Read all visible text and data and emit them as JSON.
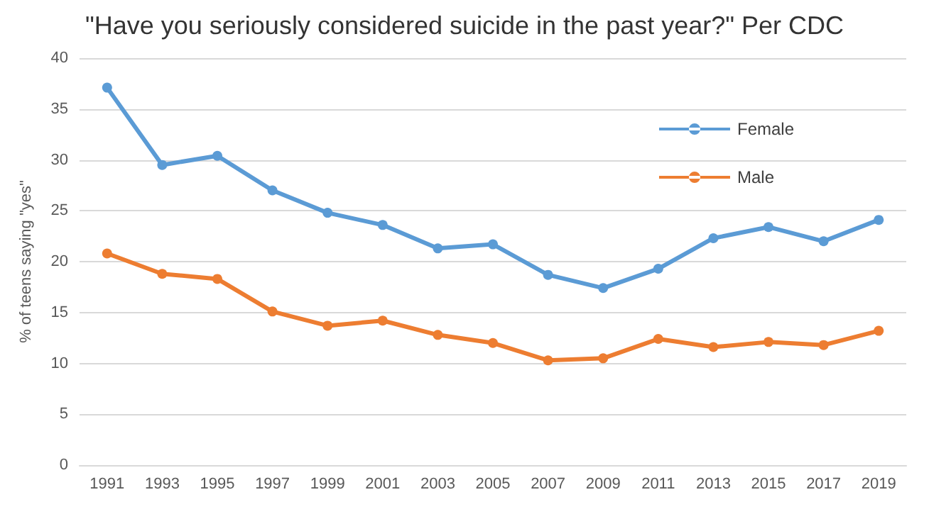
{
  "chart_data": {
    "type": "line",
    "title": "\"Have you seriously considered suicide in the past year?\" Per CDC",
    "ylabel": "% of teens saying \"yes\"",
    "categories": [
      "1991",
      "1993",
      "1995",
      "1997",
      "1999",
      "2001",
      "2003",
      "2005",
      "2007",
      "2009",
      "2011",
      "2013",
      "2015",
      "2017",
      "2019"
    ],
    "series": [
      {
        "name": "Female",
        "color": "#5b9bd5",
        "values": [
          37.1,
          29.5,
          30.4,
          27.0,
          24.8,
          23.6,
          21.3,
          21.7,
          18.7,
          17.4,
          19.3,
          22.3,
          23.4,
          22.0,
          24.1
        ]
      },
      {
        "name": "Male",
        "color": "#ed7d31",
        "values": [
          20.8,
          18.8,
          18.3,
          15.1,
          13.7,
          14.2,
          12.8,
          12.0,
          10.3,
          10.5,
          12.4,
          11.6,
          12.1,
          11.8,
          13.2
        ]
      }
    ],
    "ylim": [
      0,
      40
    ],
    "yticks": [
      0,
      5,
      10,
      15,
      20,
      25,
      30,
      35,
      40
    ],
    "grid": "y",
    "legend": "top right",
    "marker": "circle",
    "line_style": "solid"
  }
}
